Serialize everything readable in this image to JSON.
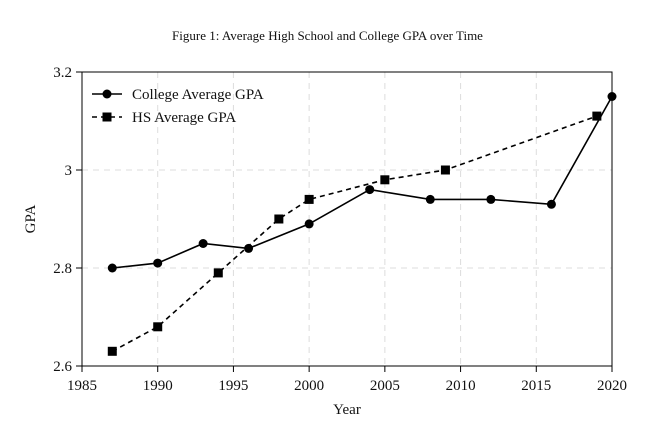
{
  "figure_title": "Figure 1: Average High School and College GPA over Time",
  "chart_data": {
    "type": "line",
    "title": "Figure 1: Average High School and College GPA over Time",
    "xlabel": "Year",
    "ylabel": "GPA",
    "xlim": [
      1985,
      2020
    ],
    "ylim": [
      2.6,
      3.2
    ],
    "xticks": [
      1985,
      1990,
      1995,
      2000,
      2005,
      2010,
      2015,
      2020
    ],
    "yticks": [
      2.6,
      2.8,
      3,
      3.2
    ],
    "ytick_labels": [
      "2.6",
      "2.8",
      "3",
      "3.2"
    ],
    "grid": true,
    "legend_position": "top-left",
    "series": [
      {
        "name": "College Average GPA",
        "marker": "circle",
        "line_style": "solid",
        "color": "#000000",
        "x": [
          1987,
          1990,
          1993,
          1996,
          2000,
          2004,
          2008,
          2012,
          2016,
          2020
        ],
        "y": [
          2.8,
          2.81,
          2.85,
          2.84,
          2.89,
          2.96,
          2.94,
          2.94,
          2.93,
          3.15
        ]
      },
      {
        "name": "HS Average GPA",
        "marker": "square",
        "line_style": "dashed",
        "color": "#000000",
        "x": [
          1987,
          1990,
          1994,
          1998,
          2000,
          2005,
          2009,
          2019
        ],
        "y": [
          2.63,
          2.68,
          2.79,
          2.9,
          2.94,
          2.98,
          3.0,
          3.11
        ]
      }
    ]
  }
}
